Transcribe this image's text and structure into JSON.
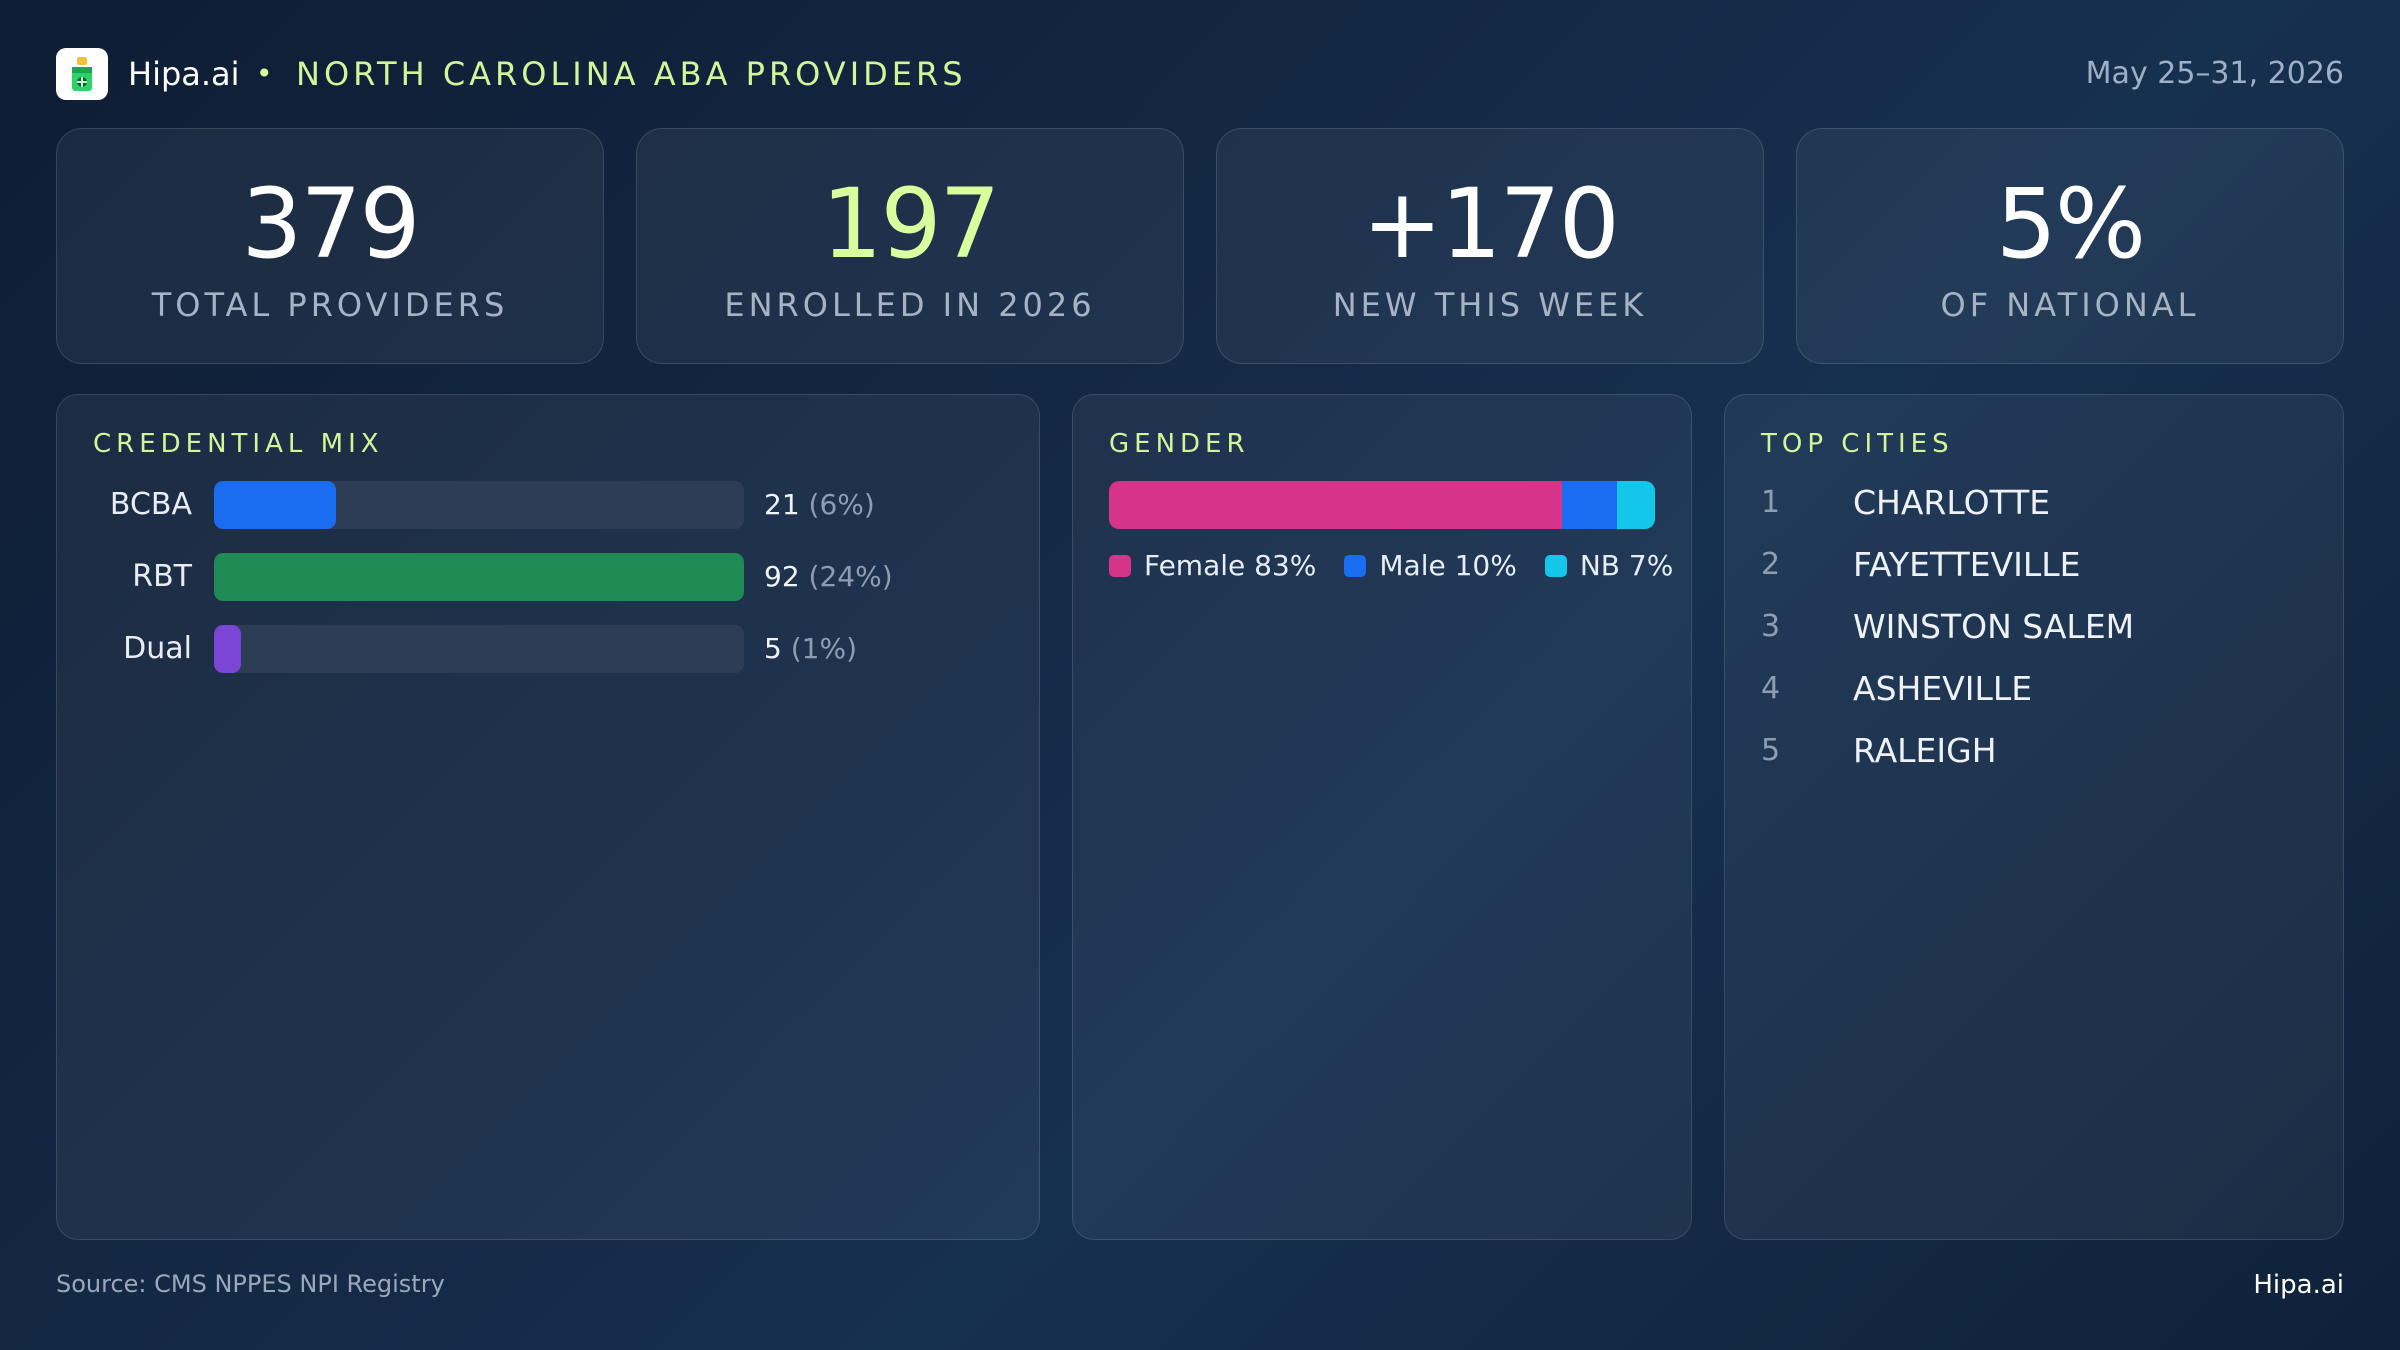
{
  "header": {
    "brand": "Hipa.ai",
    "separator": "•",
    "title": "NORTH CAROLINA ABA PROVIDERS",
    "date_range": "May 25–31, 2026"
  },
  "stats": [
    {
      "value": "379",
      "label": "TOTAL PROVIDERS",
      "color": "#ffffff"
    },
    {
      "value": "197",
      "label": "ENROLLED IN 2026",
      "color": "#d8ff9e"
    },
    {
      "value": "+170",
      "label": "NEW THIS WEEK",
      "color": "#ffffff"
    },
    {
      "value": "5%",
      "label": "OF NATIONAL",
      "color": "#ffffff"
    }
  ],
  "credential": {
    "title": "CREDENTIAL MIX",
    "rows": [
      {
        "label": "BCBA",
        "value": "21",
        "pct_text": "(6%)",
        "fraction": 0.23,
        "color": "#1a6cf0"
      },
      {
        "label": "RBT",
        "value": "92",
        "pct_text": "(24%)",
        "fraction": 1.0,
        "color": "#1e8c54"
      },
      {
        "label": "Dual",
        "value": "5",
        "pct_text": "(1%)",
        "fraction": 0.05,
        "color": "#7b45d6"
      }
    ]
  },
  "gender": {
    "title": "GENDER",
    "segments": [
      {
        "label": "Female 83%",
        "percent": 83,
        "color": "#d6348a"
      },
      {
        "label": "Male 10%",
        "percent": 10,
        "color": "#1a6cf0"
      },
      {
        "label": "NB 7%",
        "percent": 7,
        "color": "#14c6ea"
      }
    ]
  },
  "cities": {
    "title": "TOP CITIES",
    "items": [
      {
        "rank": "1",
        "name": "CHARLOTTE"
      },
      {
        "rank": "2",
        "name": "FAYETTEVILLE"
      },
      {
        "rank": "3",
        "name": "WINSTON SALEM"
      },
      {
        "rank": "4",
        "name": "ASHEVILLE"
      },
      {
        "rank": "5",
        "name": "RALEIGH"
      }
    ]
  },
  "footer": {
    "source": "Source: CMS NPPES NPI Registry",
    "brand": "Hipa.ai"
  },
  "chart_data": [
    {
      "type": "bar",
      "title": "CREDENTIAL MIX",
      "categories": [
        "BCBA",
        "RBT",
        "Dual"
      ],
      "values": [
        21,
        92,
        5
      ],
      "percent_labels": [
        "(6%)",
        "(24%)",
        "(1%)"
      ]
    },
    {
      "type": "bar",
      "title": "GENDER",
      "categories": [
        "Female",
        "Male",
        "NB"
      ],
      "values": [
        83,
        10,
        7
      ]
    }
  ]
}
